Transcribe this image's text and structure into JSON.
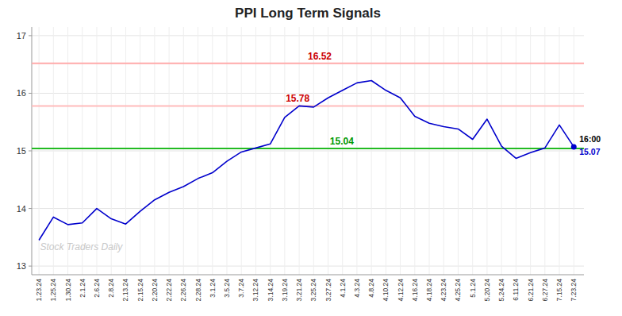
{
  "chart_data": {
    "type": "line",
    "title": "PPI Long Term Signals",
    "categories": [
      "1.23.24",
      "1.25.24",
      "1.30.24",
      "2.1.24",
      "2.6.24",
      "2.8.24",
      "2.13.24",
      "2.15.24",
      "2.20.24",
      "2.22.24",
      "2.26.24",
      "2.28.24",
      "3.1.24",
      "3.5.24",
      "3.7.24",
      "3.12.24",
      "3.14.24",
      "3.19.24",
      "3.21.24",
      "3.25.24",
      "3.27.24",
      "4.1.24",
      "4.3.24",
      "4.8.24",
      "4.10.24",
      "4.12.24",
      "4.16.24",
      "4.18.24",
      "4.23.24",
      "4.25.24",
      "5.1.24",
      "5.20.24",
      "5.24.24",
      "6.11.24",
      "6.21.24",
      "6.27.24",
      "7.15.24",
      "7.23.24"
    ],
    "values": [
      13.45,
      13.85,
      13.72,
      13.75,
      14.0,
      13.82,
      13.73,
      13.95,
      14.15,
      14.28,
      14.38,
      14.52,
      14.62,
      14.82,
      14.98,
      15.05,
      15.12,
      15.58,
      15.78,
      15.76,
      15.92,
      16.05,
      16.18,
      16.22,
      16.05,
      15.92,
      15.6,
      15.48,
      15.42,
      15.38,
      15.2,
      15.55,
      15.08,
      14.87,
      14.97,
      15.05,
      15.45,
      15.07
    ],
    "color": "#0000cc",
    "annotations": [
      {
        "text": "16.52",
        "value": 16.52,
        "color": "#ffaaaa",
        "text_color": "#cc0000"
      },
      {
        "text": "15.78",
        "value": 15.78,
        "color": "#ffbbbb",
        "text_color": "#cc0000"
      },
      {
        "text": "15.04",
        "value": 15.04,
        "color": "#22bb22",
        "text_color": "#009900"
      }
    ],
    "last_point": {
      "time": "16:00",
      "value": 15.07
    },
    "watermark": "Stock Traders Daily",
    "watermark_color": "#c8c8c8",
    "ylim": [
      12.85,
      17.15
    ],
    "yticks": [
      13,
      14,
      15,
      16,
      17
    ],
    "grid": true
  }
}
